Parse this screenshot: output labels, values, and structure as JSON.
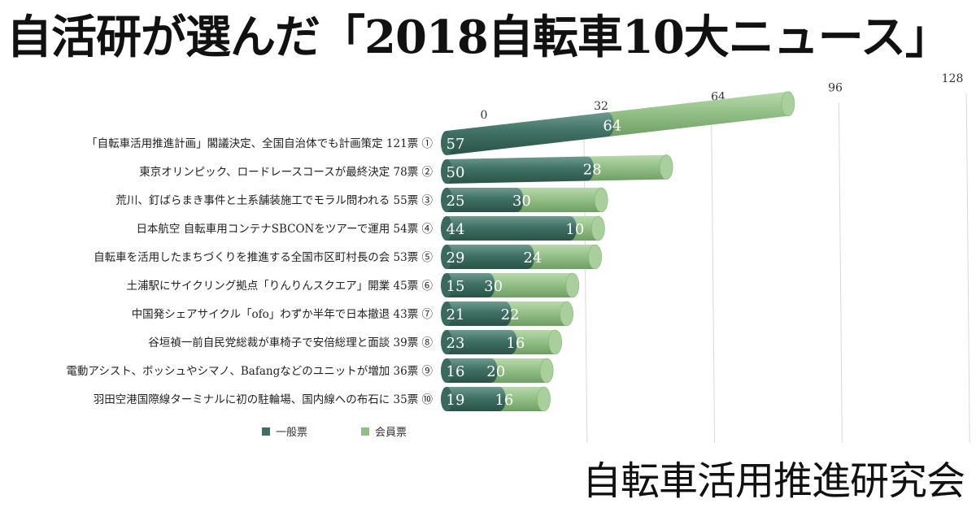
{
  "header": {
    "title": "自活研が選んだ「2018自転車10大ニュース」"
  },
  "footer": {
    "org": "自転車活用推進研究会"
  },
  "colors": {
    "general": "#3e6f63",
    "member": "#93bf87"
  },
  "chart_data": {
    "type": "bar",
    "orientation": "horizontal",
    "stacked": true,
    "categories": [
      "「自転車活用推進計画」閣議決定、全国自治体でも計画策定 121票 ①",
      "東京オリンピック、ロードレースコースが最終決定 78票 ②",
      "荒川、釘ばらまき事件と土系舗装施工でモラル問われる 55票 ③",
      "日本航空 自転車用コンテナSBCONをツアーで運用 54票 ④",
      "自転車を活用したまちづくりを推進する全国市区町村長の会 53票 ⑤",
      "土浦駅にサイクリング拠点「りんりんスクエア」開業 45票 ⑥",
      "中国発シェアサイクル「ofo」わずか半年で日本撤退 43票 ⑦",
      "谷垣禎一前自民党総裁が車椅子で安倍総理と面談 39票 ⑧",
      "電動アシスト、ボッシュやシマノ、Bafangなどのユニットが増加 36票 ⑨",
      "羽田空港国際線ターミナルに初の駐輪場、国内線への布石に 35票 ⑩"
    ],
    "series": [
      {
        "name": "一般票",
        "values": [
          57,
          50,
          25,
          44,
          29,
          15,
          21,
          23,
          16,
          19
        ]
      },
      {
        "name": "会員票",
        "values": [
          64,
          28,
          30,
          10,
          24,
          30,
          22,
          16,
          20,
          16
        ]
      }
    ],
    "xlim": [
      0,
      128
    ],
    "xticks": [
      0,
      32,
      64,
      96,
      128
    ],
    "grid": true,
    "legend": "bottom"
  }
}
